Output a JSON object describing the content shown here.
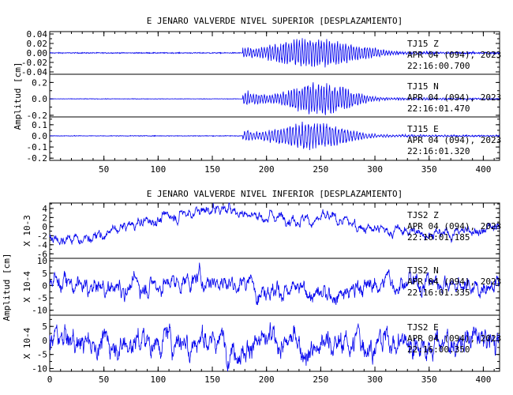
{
  "chart_data": [
    {
      "type": "line",
      "title": "E JENARO VALVERDE NIVEL SUPERIOR [DESPLAZAMIENTO]",
      "ylabel": "Amplitud [cm]",
      "xlim": [
        0,
        415
      ],
      "x_ticks": [
        "50",
        "100",
        "150",
        "200",
        "250",
        "300",
        "350",
        "400"
      ],
      "traces": [
        {
          "label": [
            "TJ15   Z",
            "APR 04 (094), 2023",
            "22:16:00.700"
          ],
          "ylim": [
            -0.045,
            0.045
          ],
          "y_ticks": [
            0.04,
            0.02,
            0.0,
            -0.02,
            -0.04
          ],
          "y_tick_labels": [
            "0.04",
            "0.02",
            "0.00",
            "-0.02",
            "-0.04"
          ],
          "scale_label": "",
          "color": "#0000ee",
          "onset": 178,
          "pre_noise": 0.001,
          "peak_time": 245,
          "peak_amp": 0.03,
          "envelope_width": 55,
          "period": 2.5
        },
        {
          "label": [
            "TJ15   N",
            "APR 04 (094), 2023",
            "22:16:01.470"
          ],
          "ylim": [
            -0.22,
            0.3
          ],
          "y_ticks": [
            0.2,
            0.0,
            -0.2
          ],
          "y_tick_labels": [
            "0.2",
            "0.0",
            "-0.2"
          ],
          "scale_label": "",
          "color": "#0000ee",
          "onset": 178,
          "pre_noise": 0.003,
          "peak_time": 248,
          "peak_amp": 0.2,
          "envelope_width": 40,
          "period": 2.5
        },
        {
          "label": [
            "TJ15   E",
            "APR 04 (094), 2023",
            "22:16:01.320"
          ],
          "ylim": [
            -0.22,
            0.17
          ],
          "y_ticks": [
            0.1,
            0.0,
            -0.1,
            -0.2
          ],
          "y_tick_labels": [
            "0.1",
            "0.0",
            "-0.1",
            "-0.2"
          ],
          "scale_label": "",
          "color": "#0000ee",
          "onset": 178,
          "pre_noise": 0.003,
          "peak_time": 240,
          "peak_amp": 0.12,
          "envelope_width": 45,
          "period": 2.8
        }
      ]
    },
    {
      "type": "line",
      "title": "E JENARO VALVERDE NIVEL INFERIOR [DESPLAZAMIENTO]",
      "ylabel": "Amplitud [cm]",
      "xlim": [
        0,
        415
      ],
      "x_ticks": [
        "0",
        "50",
        "100",
        "150",
        "200",
        "250",
        "300",
        "350",
        "400"
      ],
      "traces": [
        {
          "label": [
            "TJS2   Z",
            "APR 04 (094), 2023",
            "22:16:01.185"
          ],
          "ylim": [
            -7,
            5.2
          ],
          "y_ticks": [
            4,
            2,
            0,
            -2,
            -4,
            -6
          ],
          "y_tick_labels": [
            "4",
            "2",
            "0",
            "-2",
            "-4",
            "-6"
          ],
          "scale_label": "X 10-3",
          "color": "#0000ee",
          "drift": [
            [
              0,
              -2
            ],
            [
              30,
              -3
            ],
            [
              80,
              0.5
            ],
            [
              130,
              3.5
            ],
            [
              160,
              4
            ],
            [
              200,
              2.5
            ],
            [
              260,
              1.5
            ],
            [
              300,
              -0.5
            ],
            [
              360,
              -1.5
            ],
            [
              415,
              0
            ]
          ],
          "noise": 1.3
        },
        {
          "label": [
            "TJS2   N",
            "APR 04 (094), 2023",
            "22:16:01.335"
          ],
          "ylim": [
            -12,
            11
          ],
          "y_ticks": [
            10,
            5,
            0,
            -5,
            -10
          ],
          "y_tick_labels": [
            "10",
            "5",
            "0",
            "-5",
            "-10"
          ],
          "scale_label": "X 10-4",
          "color": "#0000ee",
          "drift": [
            [
              0,
              3
            ],
            [
              40,
              -2
            ],
            [
              100,
              1
            ],
            [
              150,
              3
            ],
            [
              200,
              0
            ],
            [
              250,
              -5
            ],
            [
              300,
              1
            ],
            [
              350,
              2
            ],
            [
              415,
              -1
            ]
          ],
          "noise": 4
        },
        {
          "label": [
            "TJS2   E",
            "APR 04 (094), 2023",
            "22:16:00.350"
          ],
          "ylim": [
            -11,
            9
          ],
          "y_ticks": [
            5,
            0,
            -5,
            -10
          ],
          "y_tick_labels": [
            "5",
            "0",
            "-5",
            "-10"
          ],
          "scale_label": "X 10-4",
          "color": "#0000ee",
          "drift": [
            [
              0,
              0
            ],
            [
              60,
              -1
            ],
            [
              120,
              1
            ],
            [
              180,
              -1
            ],
            [
              240,
              -2
            ],
            [
              300,
              0
            ],
            [
              360,
              -1
            ],
            [
              415,
              0
            ]
          ],
          "noise": 5
        }
      ]
    }
  ]
}
